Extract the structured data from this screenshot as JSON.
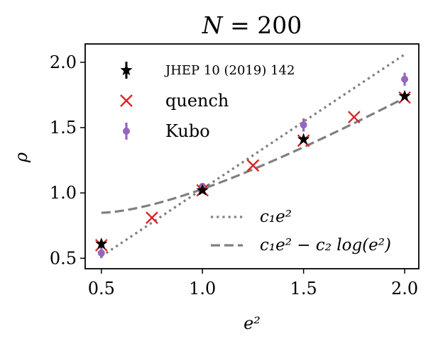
{
  "chart_data": {
    "type": "scatter",
    "title": "N = 200",
    "title_math": {
      "var": "N",
      "rest": " = 200"
    },
    "xlabel": "e²",
    "ylabel": "ρ",
    "xlim": [
      0.42,
      2.07
    ],
    "ylim": [
      0.42,
      2.14
    ],
    "xticks": [
      0.5,
      1.0,
      1.5,
      2.0
    ],
    "xtick_labels": [
      "0.5",
      "1.0",
      "1.5",
      "2.0"
    ],
    "yticks": [
      0.5,
      1.0,
      1.5,
      2.0
    ],
    "ytick_labels": [
      "0.5",
      "1.0",
      "1.5",
      "2.0"
    ],
    "grid": false,
    "legend_position": "top-left",
    "series": [
      {
        "name": "JHEP 10 (2019) 142",
        "marker": "star-errorbar",
        "color": "#000000",
        "points": [
          {
            "x": 0.5,
            "y": 0.61,
            "err": 0.03
          },
          {
            "x": 1.0,
            "y": 1.02,
            "err": 0.02
          },
          {
            "x": 1.5,
            "y": 1.41,
            "err": 0.02
          },
          {
            "x": 2.0,
            "y": 1.74,
            "err": 0.02
          }
        ]
      },
      {
        "name": "quench",
        "marker": "x",
        "color": "#d62728",
        "points": [
          {
            "x": 0.5,
            "y": 0.6
          },
          {
            "x": 0.75,
            "y": 0.81
          },
          {
            "x": 1.0,
            "y": 1.02
          },
          {
            "x": 1.25,
            "y": 1.21
          },
          {
            "x": 1.5,
            "y": 1.4
          },
          {
            "x": 1.75,
            "y": 1.58
          },
          {
            "x": 2.0,
            "y": 1.73
          }
        ]
      },
      {
        "name": "Kubo",
        "marker": "dot-errorbar",
        "color": "#9467bd",
        "points": [
          {
            "x": 0.5,
            "y": 0.54,
            "err": 0.04
          },
          {
            "x": 1.0,
            "y": 1.05,
            "err": 0.02
          },
          {
            "x": 1.5,
            "y": 1.52,
            "err": 0.05
          },
          {
            "x": 2.0,
            "y": 1.87,
            "err": 0.05
          }
        ]
      }
    ],
    "fits": [
      {
        "name": "c₁e²",
        "style": "dotted",
        "color": "#808080",
        "formula": "c1*x",
        "c1": 1.03,
        "x_range": [
          0.5,
          2.0
        ]
      },
      {
        "name": "c₁e² − c₂ log(e²)",
        "style": "dashed",
        "color": "#808080",
        "formula": "c1*x - c2*ln(x)",
        "c1": 1.03,
        "c2": 0.48,
        "x_range": [
          0.5,
          2.0
        ]
      }
    ]
  }
}
